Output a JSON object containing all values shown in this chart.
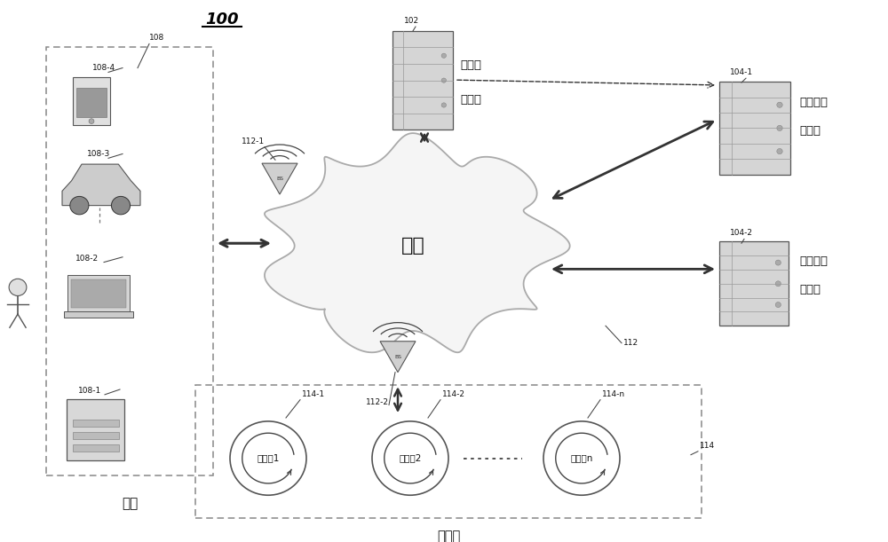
{
  "bg_color": "#ffffff",
  "labels": {
    "network": "网络",
    "user": "用户",
    "supplier_label": "供应商",
    "fin_mgmt_line1": "金融管",
    "fin_mgmt_line2": "理系统",
    "fin_inst1_line1": "金融机构",
    "fin_inst1_line2": "服务器",
    "fin_inst2_line1": "金融机构",
    "fin_inst2_line2": "服务器",
    "supplier1": "供应商1",
    "supplier2": "供应商2",
    "suppliern": "供应商n",
    "ref_100": "100",
    "ref_102": "102",
    "ref_104_1": "104-1",
    "ref_104_2": "104-2",
    "ref_108": "108",
    "ref_108_1": "108-1",
    "ref_108_2": "108-2",
    "ref_108_3": "108-3",
    "ref_108_4": "108-4",
    "ref_112": "112",
    "ref_112_1": "112-1",
    "ref_112_2": "112-2",
    "ref_114": "114",
    "ref_114_1": "114-1",
    "ref_114_2": "114-2",
    "ref_114_n": "114-n"
  },
  "colors": {
    "arrow": "#333333",
    "text": "#111111",
    "cloud_fill": "#f5f5f5",
    "cloud_edge": "#aaaaaa",
    "device_fill": "#cccccc",
    "device_edge": "#555555",
    "dashed_box": "#888888",
    "server_line": "#888888"
  }
}
